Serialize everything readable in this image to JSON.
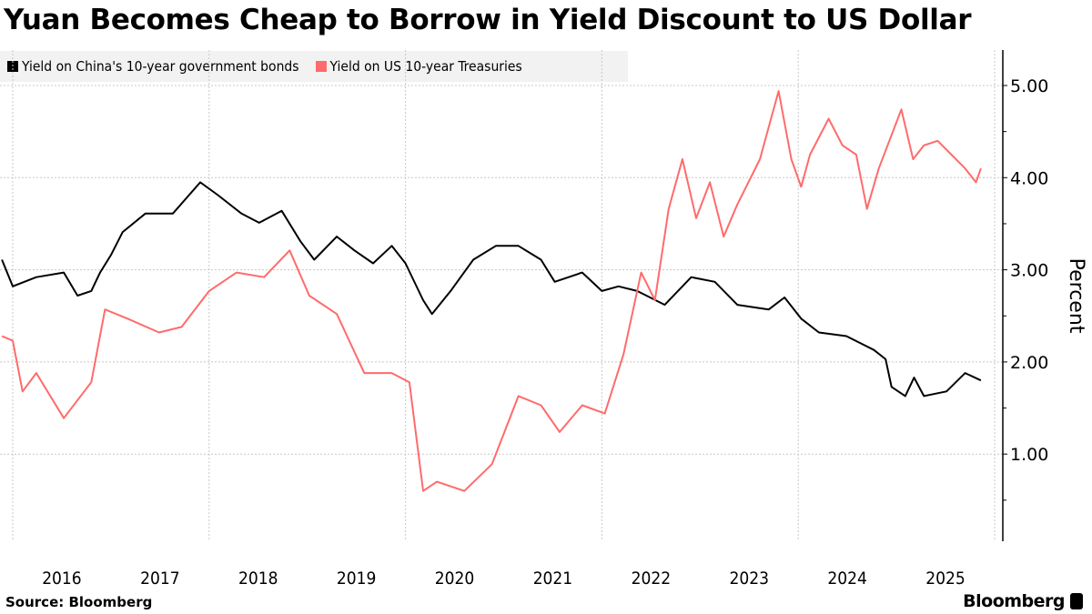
{
  "chart_data": {
    "type": "line",
    "title": "Yuan Becomes Cheap to Borrow in Yield Discount to US Dollar",
    "ylabel": "Percent",
    "xlabel": "",
    "xlim": [
      2016,
      2026
    ],
    "ylim": [
      0.05,
      5.4
    ],
    "y_axis_side": "right",
    "y_ticks": [
      "1.00",
      "2.00",
      "3.00",
      "4.00",
      "5.00"
    ],
    "x_ticks": [
      "2016",
      "2017",
      "2018",
      "2019",
      "2020",
      "2021",
      "2022",
      "2023",
      "2024",
      "2025"
    ],
    "grid": true,
    "legend_position": "top-left",
    "series": [
      {
        "name": "Yield on China's 10-year government bonds",
        "color": "#000000",
        "x": [
          2015.89,
          2016.0,
          2016.24,
          2016.52,
          2016.66,
          2016.8,
          2016.89,
          2017.0,
          2017.12,
          2017.35,
          2017.63,
          2017.91,
          2018.09,
          2018.33,
          2018.51,
          2018.74,
          2018.93,
          2019.07,
          2019.3,
          2019.48,
          2019.67,
          2019.86,
          2020.0,
          2020.18,
          2020.27,
          2020.46,
          2020.69,
          2020.92,
          2021.15,
          2021.38,
          2021.52,
          2021.8,
          2022.0,
          2022.17,
          2022.36,
          2022.64,
          2022.91,
          2023.15,
          2023.38,
          2023.7,
          2023.86,
          2024.03,
          2024.21,
          2024.49,
          2024.77,
          2024.89,
          2024.95,
          2025.09,
          2025.18,
          2025.28,
          2025.51,
          2025.7,
          2025.86
        ],
        "y": [
          3.11,
          2.82,
          2.92,
          2.97,
          2.72,
          2.77,
          2.97,
          3.16,
          3.41,
          3.61,
          3.61,
          3.95,
          3.81,
          3.61,
          3.51,
          3.64,
          3.31,
          3.11,
          3.36,
          3.21,
          3.07,
          3.26,
          3.07,
          2.67,
          2.52,
          2.77,
          3.11,
          3.26,
          3.26,
          3.11,
          2.87,
          2.97,
          2.77,
          2.82,
          2.77,
          2.62,
          2.92,
          2.87,
          2.62,
          2.57,
          2.7,
          2.47,
          2.32,
          2.28,
          2.13,
          2.03,
          1.73,
          1.63,
          1.83,
          1.63,
          1.68,
          1.88,
          1.8
        ]
      },
      {
        "name": "Yield on US 10-year Treasuries",
        "color": "#ff6b6b",
        "x": [
          2015.89,
          2016.0,
          2016.1,
          2016.24,
          2016.52,
          2016.8,
          2016.94,
          2017.17,
          2017.49,
          2017.72,
          2018.0,
          2018.28,
          2018.56,
          2018.82,
          2019.02,
          2019.3,
          2019.58,
          2019.86,
          2020.04,
          2020.18,
          2020.32,
          2020.6,
          2020.88,
          2021.15,
          2021.38,
          2021.57,
          2021.8,
          2022.03,
          2022.22,
          2022.4,
          2022.54,
          2022.68,
          2022.82,
          2022.96,
          2023.1,
          2023.24,
          2023.38,
          2023.61,
          2023.8,
          2023.93,
          2024.03,
          2024.12,
          2024.31,
          2024.45,
          2024.59,
          2024.7,
          2024.82,
          2024.91,
          2025.05,
          2025.17,
          2025.28,
          2025.42,
          2025.56,
          2025.7,
          2025.81,
          2025.86
        ],
        "y": [
          2.28,
          2.23,
          1.68,
          1.88,
          1.39,
          1.78,
          2.57,
          2.47,
          2.32,
          2.38,
          2.77,
          2.97,
          2.92,
          3.21,
          2.72,
          2.52,
          1.88,
          1.88,
          1.78,
          0.6,
          0.7,
          0.6,
          0.89,
          1.63,
          1.53,
          1.24,
          1.53,
          1.44,
          2.08,
          2.97,
          2.67,
          3.66,
          4.2,
          3.56,
          3.95,
          3.36,
          3.71,
          4.2,
          4.94,
          4.2,
          3.9,
          4.25,
          4.64,
          4.35,
          4.25,
          3.66,
          4.1,
          4.35,
          4.74,
          4.2,
          4.35,
          4.4,
          4.25,
          4.1,
          3.95,
          4.1
        ]
      }
    ]
  },
  "footer": {
    "source": "Source: Bloomberg",
    "logo": "Bloomberg"
  }
}
